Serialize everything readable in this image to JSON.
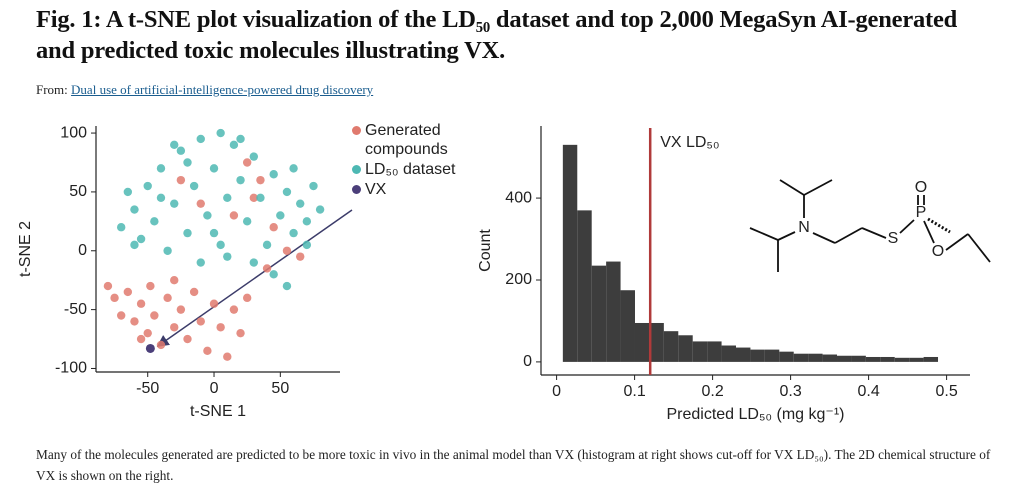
{
  "title": "Fig. 1: A t-SNE plot visualization of the LD₅₀ dataset and top 2,000 MegaSyn AI-generated and predicted toxic molecules illustrating VX.",
  "source": {
    "prefix": "From:",
    "link": "Dual use of artificial-intelligence-powered drug discovery"
  },
  "caption": "Many of the molecules generated are predicted to be more toxic in vivo in the animal model than VX (histogram at right shows cut-off for VX LD₅₀). The 2D chemical structure of VX is shown on the right.",
  "structure": {
    "atoms": [
      "N",
      "S",
      "P",
      "O",
      "O"
    ]
  },
  "chart_data": [
    {
      "type": "scatter",
      "x_label": "t-SNE 1",
      "y_label": "t-SNE 2",
      "xlim": [
        -89,
        95
      ],
      "ylim": [
        -103,
        106
      ],
      "xticks": [
        -50,
        0,
        50
      ],
      "yticks": [
        -100,
        -50,
        0,
        50,
        100
      ],
      "series": [
        {
          "name": "Generated compounds",
          "color": "#e07a6e",
          "x": [
            -80,
            -75,
            -70,
            -65,
            -60,
            -55,
            -50,
            -48,
            -45,
            -40,
            -35,
            -30,
            -25,
            -20,
            -15,
            -10,
            -5,
            0,
            5,
            10,
            15,
            20,
            25,
            -30,
            -55,
            30,
            35,
            45,
            55,
            65,
            -25,
            -10,
            15,
            40,
            25
          ],
          "y": [
            -30,
            -40,
            -55,
            -35,
            -60,
            -45,
            -70,
            -30,
            -55,
            -80,
            -40,
            -65,
            -50,
            -75,
            -35,
            -60,
            -85,
            -45,
            -65,
            -90,
            -50,
            -70,
            -40,
            -25,
            -75,
            45,
            60,
            20,
            0,
            -5,
            60,
            40,
            30,
            -15,
            75
          ]
        },
        {
          "name": "LD₅₀ dataset",
          "color": "#4db8b3",
          "x": [
            -70,
            -60,
            -55,
            -50,
            -45,
            -40,
            -35,
            -30,
            -25,
            -20,
            -15,
            -10,
            -5,
            0,
            5,
            10,
            15,
            20,
            25,
            30,
            35,
            40,
            45,
            50,
            55,
            60,
            65,
            70,
            75,
            80,
            -65,
            -40,
            -20,
            0,
            10,
            30,
            45,
            55,
            -10,
            -60,
            20,
            -30,
            60,
            70,
            5
          ],
          "y": [
            20,
            35,
            10,
            55,
            25,
            70,
            0,
            40,
            85,
            15,
            55,
            95,
            30,
            70,
            5,
            45,
            90,
            60,
            25,
            80,
            45,
            5,
            65,
            30,
            50,
            15,
            40,
            25,
            55,
            35,
            50,
            45,
            75,
            15,
            -5,
            -10,
            -20,
            -30,
            -10,
            5,
            95,
            90,
            70,
            5,
            100
          ]
        },
        {
          "name": "VX",
          "color": "#4b3f7a",
          "x": [
            -48
          ],
          "y": [
            -83
          ]
        }
      ]
    },
    {
      "type": "histogram",
      "x_label": "Predicted LD₅₀ (mg kg⁻¹)",
      "y_label": "Count",
      "color": "#3d3d3d",
      "xlim": [
        -0.02,
        0.53
      ],
      "ylim": [
        -32,
        576
      ],
      "xticks": [
        0,
        0.1,
        0.2,
        0.3,
        0.4,
        0.5
      ],
      "yticks": [
        0,
        200,
        400
      ],
      "bins": [
        0.008,
        0.0265,
        0.045,
        0.0635,
        0.082,
        0.1005,
        0.119,
        0.1375,
        0.156,
        0.1745,
        0.193,
        0.2115,
        0.23,
        0.2485,
        0.267,
        0.2855,
        0.304,
        0.3225,
        0.341,
        0.3595,
        0.378,
        0.3965,
        0.415,
        0.4335,
        0.452,
        0.4705,
        0.489
      ],
      "values": [
        530,
        370,
        235,
        245,
        175,
        95,
        95,
        75,
        65,
        50,
        50,
        40,
        35,
        30,
        30,
        25,
        20,
        20,
        18,
        15,
        15,
        12,
        12,
        10,
        10,
        12
      ],
      "annotation": {
        "x": 0.12,
        "text": "VX LD₅₀",
        "color": "#b03a3a"
      }
    }
  ]
}
